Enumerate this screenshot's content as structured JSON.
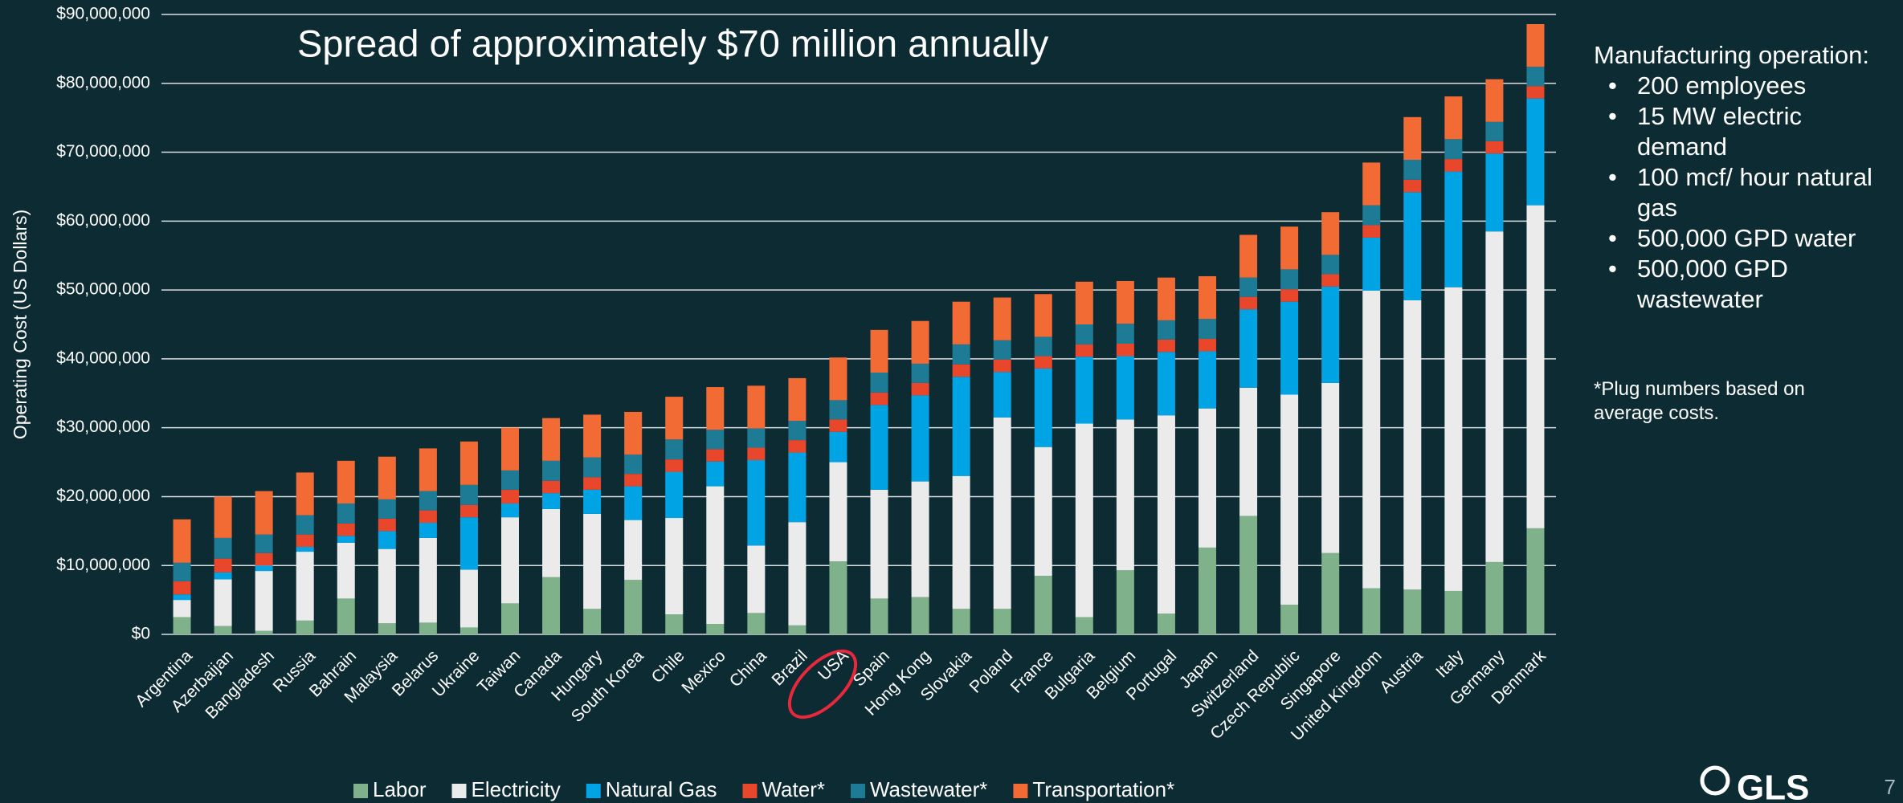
{
  "chart_data": {
    "type": "stacked-bar",
    "title": "Spread of approximately $70 million annually",
    "y_label": "Operating Cost (US Dollars)",
    "categories": [
      "Argentina",
      "Azerbaijan",
      "Bangladesh",
      "Russia",
      "Bahrain",
      "Malaysia",
      "Belarus",
      "Ukraine",
      "Taiwan",
      "Canada",
      "Hungary",
      "South Korea",
      "Chile",
      "Mexico",
      "China",
      "Brazil",
      "USA",
      "Spain",
      "Hong Kong",
      "Slovakia",
      "Poland",
      "France",
      "Bulgaria",
      "Belgium",
      "Portugal",
      "Japan",
      "Switzerland",
      "Czech Republic",
      "Singapore",
      "United Kingdom",
      "Austria",
      "Italy",
      "Germany",
      "Denmark"
    ],
    "series": [
      {
        "name": "Labor",
        "color": "#7fb28a",
        "values": [
          2500000,
          1200000,
          500000,
          2000000,
          5200000,
          1600000,
          1700000,
          1000000,
          4500000,
          8300000,
          3700000,
          7900000,
          2900000,
          1500000,
          3100000,
          1300000,
          10600000,
          5200000,
          5400000,
          3700000,
          3700000,
          8500000,
          2500000,
          9300000,
          3000000,
          12600000,
          17200000,
          4300000,
          11800000,
          6700000,
          6500000,
          6300000,
          10500000,
          15400000
        ]
      },
      {
        "name": "Electricity",
        "color": "#ebebeb",
        "values": [
          2500000,
          6800000,
          8700000,
          10000000,
          8100000,
          10800000,
          12300000,
          8400000,
          12500000,
          9900000,
          13800000,
          8700000,
          14000000,
          20000000,
          9800000,
          15000000,
          14400000,
          15800000,
          16800000,
          19300000,
          27800000,
          18700000,
          28100000,
          21900000,
          28800000,
          20200000,
          18600000,
          30500000,
          24700000,
          43200000,
          42000000,
          44100000,
          48000000,
          46900000
        ]
      },
      {
        "name": "Natural Gas",
        "color": "#00a4e4",
        "values": [
          800000,
          1000000,
          800000,
          700000,
          1000000,
          2600000,
          2200000,
          7600000,
          2000000,
          2300000,
          3500000,
          4900000,
          6700000,
          3600000,
          12400000,
          10100000,
          4400000,
          12300000,
          12500000,
          14400000,
          6600000,
          11400000,
          9700000,
          9200000,
          9200000,
          8300000,
          11400000,
          13500000,
          14000000,
          7700000,
          15700000,
          16800000,
          11300000,
          15500000
        ]
      },
      {
        "name": "Water*",
        "color": "#e9472b",
        "values": [
          1900000,
          2000000,
          1800000,
          1800000,
          1800000,
          1800000,
          1800000,
          1800000,
          2000000,
          1800000,
          1800000,
          1800000,
          1800000,
          1800000,
          1800000,
          1800000,
          1800000,
          1800000,
          1800000,
          1800000,
          1800000,
          1800000,
          1800000,
          1800000,
          1800000,
          1800000,
          1800000,
          1800000,
          1800000,
          1800000,
          1800000,
          1800000,
          1800000,
          1800000
        ]
      },
      {
        "name": "Wastewater*",
        "color": "#1e7b95",
        "values": [
          2700000,
          3000000,
          2700000,
          2800000,
          2900000,
          2800000,
          2800000,
          2900000,
          2800000,
          2900000,
          2900000,
          2800000,
          2900000,
          2800000,
          2800000,
          2800000,
          2800000,
          2900000,
          2800000,
          2900000,
          2800000,
          2800000,
          2900000,
          2900000,
          2800000,
          2900000,
          2800000,
          2900000,
          2800000,
          2900000,
          2900000,
          2900000,
          2800000,
          2800000
        ]
      },
      {
        "name": "Transportation*",
        "color": "#f26b35",
        "values": [
          6300000,
          6000000,
          6300000,
          6200000,
          6200000,
          6200000,
          6200000,
          6300000,
          6200000,
          6200000,
          6200000,
          6200000,
          6200000,
          6200000,
          6200000,
          6200000,
          6200000,
          6200000,
          6200000,
          6200000,
          6200000,
          6200000,
          6200000,
          6200000,
          6200000,
          6200000,
          6200000,
          6200000,
          6200000,
          6200000,
          6200000,
          6200000,
          6200000,
          6200000
        ]
      }
    ],
    "ylim": [
      0,
      90000000
    ],
    "yticks": [
      {
        "value": 0,
        "label": "$0"
      },
      {
        "value": 10000000,
        "label": "$10,000,000"
      },
      {
        "value": 20000000,
        "label": "$20,000,000"
      },
      {
        "value": 30000000,
        "label": "$30,000,000"
      },
      {
        "value": 40000000,
        "label": "$40,000,000"
      },
      {
        "value": 50000000,
        "label": "$50,000,000"
      },
      {
        "value": 60000000,
        "label": "$60,000,000"
      },
      {
        "value": 70000000,
        "label": "$70,000,000"
      },
      {
        "value": 80000000,
        "label": "$80,000,000"
      },
      {
        "value": 90000000,
        "label": "$90,000,000"
      }
    ],
    "grid": true,
    "legend": "bottom"
  },
  "panel": {
    "heading": "Manufacturing operation:",
    "bullets": [
      "200 employees",
      "15 MW electric demand",
      "100 mcf/ hour natural gas",
      "500,000 GPD water",
      "500,000 GPD wastewater"
    ],
    "note": "*Plug numbers based on average costs."
  },
  "logo": "GLS",
  "page_number": "7"
}
